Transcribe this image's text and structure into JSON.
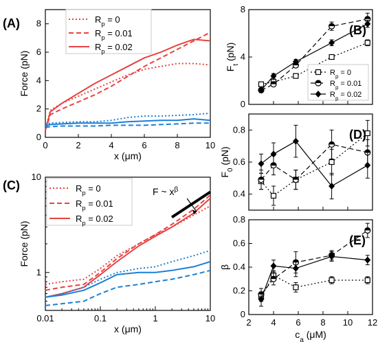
{
  "chart_data": [
    {
      "panel": "(A)",
      "type": "line",
      "xlabel": "x (μm)",
      "ylabel": "Force (pN)",
      "xlim": [
        0,
        10
      ],
      "ylim": [
        0,
        9
      ],
      "xticks": [
        0,
        2,
        4,
        6,
        8,
        10
      ],
      "yticks": [
        0,
        2,
        4,
        6,
        8
      ],
      "legend_position": "top-right",
      "series": [
        {
          "name": "Rp = 0",
          "sub": "p",
          "label_main": "R",
          "label_tail": " = 0",
          "color": "#e8413f",
          "dash": "2,3",
          "x": [
            0,
            0.3,
            1,
            2,
            3,
            4,
            5,
            6,
            7,
            8,
            9,
            10
          ],
          "y": [
            0.5,
            1.9,
            2.4,
            2.9,
            3.4,
            3.9,
            4.4,
            4.8,
            5.0,
            5.2,
            5.2,
            5.1
          ]
        },
        {
          "name": "Rp = 0.01",
          "sub": "p",
          "label_main": "R",
          "label_tail": " = 0.01",
          "color": "#e8413f",
          "dash": "7,4",
          "x": [
            0,
            0.3,
            1,
            2,
            3,
            4,
            5,
            6,
            7,
            8,
            9,
            10
          ],
          "y": [
            0.5,
            1.6,
            2.0,
            2.5,
            3.0,
            3.6,
            4.3,
            5.0,
            5.6,
            6.2,
            6.8,
            7.4
          ]
        },
        {
          "name": "Rp = 0.02",
          "sub": "p",
          "label_main": "R",
          "label_tail": " = 0.02",
          "color": "#e8413f",
          "dash": "",
          "x": [
            0,
            0.3,
            1,
            2,
            3,
            4,
            5,
            6,
            7,
            8,
            9,
            10
          ],
          "y": [
            0.5,
            1.8,
            2.4,
            3.1,
            3.8,
            4.4,
            5.0,
            5.6,
            6.0,
            6.5,
            6.9,
            6.8
          ]
        },
        {
          "name": "blue Rp = 0",
          "color": "#1b7fd6",
          "dash": "2,3",
          "x": [
            0,
            0.3,
            1,
            2,
            3,
            4,
            5,
            6,
            7,
            8,
            9,
            10
          ],
          "y": [
            0.9,
            1.0,
            1.05,
            1.1,
            1.1,
            1.2,
            1.4,
            1.5,
            1.5,
            1.55,
            1.6,
            1.7
          ]
        },
        {
          "name": "blue Rp = 0.01",
          "color": "#1b7fd6",
          "dash": "7,4",
          "x": [
            0,
            0.3,
            1,
            2,
            3,
            4,
            5,
            6,
            7,
            8,
            9,
            10
          ],
          "y": [
            0.7,
            0.75,
            0.8,
            0.8,
            0.8,
            0.85,
            0.85,
            0.85,
            0.9,
            0.95,
            1.0,
            1.0
          ]
        },
        {
          "name": "blue Rp = 0.02",
          "color": "#1b7fd6",
          "dash": "",
          "x": [
            0,
            0.3,
            1,
            2,
            3,
            4,
            5,
            6,
            7,
            8,
            9,
            10
          ],
          "y": [
            0.8,
            0.9,
            0.95,
            1.0,
            1.0,
            1.0,
            1.1,
            1.15,
            1.2,
            1.2,
            1.3,
            1.2
          ]
        }
      ]
    },
    {
      "panel": "(C)",
      "type": "line",
      "xlabel": "x (μm)",
      "ylabel": "Force (pN)",
      "xscale": "log",
      "yscale": "log",
      "xlim": [
        0.01,
        10
      ],
      "ylim": [
        0.4,
        10
      ],
      "xticks": [
        0.01,
        0.1,
        1,
        10
      ],
      "yticks": [
        1,
        10
      ],
      "legend_position": "top-left",
      "annotation": "F ~ x",
      "annotation_exp": "β",
      "series": [
        {
          "name": "Rp = 0",
          "sub": "p",
          "label_main": "R",
          "label_tail": " = 0",
          "color": "#e8413f",
          "dash": "2,3",
          "x": [
            0.01,
            0.02,
            0.05,
            0.1,
            0.2,
            0.5,
            1,
            2,
            5,
            10
          ],
          "y": [
            0.75,
            0.8,
            0.85,
            1.1,
            1.5,
            2.0,
            2.5,
            3.0,
            4.0,
            5.0
          ]
        },
        {
          "name": "Rp = 0.01",
          "sub": "p",
          "label_main": "R",
          "label_tail": " = 0.01",
          "color": "#e8413f",
          "dash": "7,4",
          "x": [
            0.01,
            0.02,
            0.05,
            0.1,
            0.2,
            0.5,
            1,
            2,
            5,
            10
          ],
          "y": [
            0.65,
            0.7,
            0.75,
            1.0,
            1.4,
            2.0,
            2.5,
            3.2,
            4.6,
            6.5
          ]
        },
        {
          "name": "Rp = 0.02",
          "sub": "p",
          "label_main": "R",
          "label_tail": " = 0.02",
          "color": "#e8413f",
          "dash": "",
          "x": [
            0.01,
            0.02,
            0.05,
            0.1,
            0.2,
            0.5,
            1,
            2,
            5,
            10
          ],
          "y": [
            0.55,
            0.6,
            0.7,
            0.95,
            1.3,
            1.9,
            2.4,
            3.0,
            4.2,
            6.0
          ]
        },
        {
          "name": "blue Rp = 0",
          "color": "#1b7fd6",
          "dash": "2,3",
          "x": [
            0.01,
            0.02,
            0.05,
            0.1,
            0.2,
            0.5,
            1,
            2,
            5,
            10
          ],
          "y": [
            0.55,
            0.6,
            0.7,
            0.85,
            1.0,
            1.1,
            1.15,
            1.3,
            1.5,
            1.7
          ]
        },
        {
          "name": "blue Rp = 0.01",
          "color": "#1b7fd6",
          "dash": "7,4",
          "x": [
            0.01,
            0.02,
            0.05,
            0.1,
            0.2,
            0.5,
            1,
            2,
            5,
            10
          ],
          "y": [
            0.45,
            0.47,
            0.5,
            0.6,
            0.7,
            0.75,
            0.8,
            0.85,
            0.95,
            1.05
          ]
        },
        {
          "name": "blue Rp = 0.02",
          "color": "#1b7fd6",
          "dash": "",
          "x": [
            0.01,
            0.02,
            0.05,
            0.1,
            0.2,
            0.5,
            1,
            2,
            5,
            10
          ],
          "y": [
            0.55,
            0.58,
            0.65,
            0.78,
            0.95,
            1.0,
            1.0,
            1.05,
            1.15,
            1.3
          ]
        }
      ],
      "fit_line": {
        "x": [
          2,
          10
        ],
        "y": [
          3.8,
          7.0
        ]
      }
    },
    {
      "panel": "(B)",
      "type": "scatter",
      "ylabel_main": "F",
      "ylabel_sub": "t",
      "ylabel_tail": " (pN)",
      "ylim": [
        0,
        8
      ],
      "yticks": [
        0,
        4,
        8
      ],
      "xlim": [
        2,
        12
      ],
      "legend_position": "bottom-right",
      "x": [
        3,
        4,
        5.8,
        8.7,
        11.6
      ],
      "series": [
        {
          "name": "Rp = 0",
          "marker": "square",
          "dash": "2,3",
          "label_main": "R",
          "sub": "p",
          "label_tail": " = 0",
          "y": [
            1.7,
            1.9,
            2.4,
            4.0,
            5.2
          ],
          "err": [
            0.15,
            0.15,
            0.15,
            0.2,
            0.25
          ]
        },
        {
          "name": "Rp = 0.01",
          "marker": "halfcircle",
          "dash": "7,4",
          "label_main": "R",
          "sub": "p",
          "label_tail": " = 0.01",
          "y": [
            1.2,
            1.7,
            3.3,
            6.6,
            7.2
          ],
          "err": [
            0.15,
            0.2,
            0.2,
            0.35,
            0.5
          ]
        },
        {
          "name": "Rp = 0.02",
          "marker": "diamond",
          "dash": "",
          "label_main": "R",
          "sub": "p",
          "label_tail": " = 0.02",
          "y": [
            1.2,
            2.4,
            3.6,
            5.2,
            6.8
          ],
          "err": [
            0.2,
            0.2,
            0.2,
            0.25,
            0.3
          ]
        }
      ]
    },
    {
      "panel": "(D)",
      "type": "scatter",
      "ylabel_main": "F",
      "ylabel_sub": "0",
      "ylabel_tail": " (pN)",
      "ylim": [
        0.3,
        0.9
      ],
      "yticks": [
        0.4,
        0.6,
        0.8
      ],
      "xlim": [
        2,
        12
      ],
      "x": [
        3,
        4,
        5.8,
        8.7,
        11.6
      ],
      "series": [
        {
          "name": "Rp = 0",
          "marker": "square",
          "dash": "2,3",
          "y": [
            0.48,
            0.39,
            0.49,
            0.6,
            0.78
          ],
          "err": [
            0.05,
            0.06,
            0.06,
            0.08,
            0.08
          ]
        },
        {
          "name": "Rp = 0.01",
          "marker": "halfcircle",
          "dash": "7,4",
          "y": [
            0.49,
            0.58,
            0.49,
            0.71,
            0.66
          ],
          "err": [
            0.06,
            0.06,
            0.06,
            0.09,
            0.08
          ]
        },
        {
          "name": "Rp = 0.02",
          "marker": "diamond",
          "dash": "",
          "y": [
            0.59,
            0.65,
            0.73,
            0.45,
            0.58
          ],
          "err": [
            0.06,
            0.07,
            0.1,
            0.08,
            0.08
          ]
        }
      ]
    },
    {
      "panel": "(E)",
      "type": "scatter",
      "xlabel_main": "c",
      "xlabel_sub": "a",
      "xlabel_tail": " (μM)",
      "ylabel": "β",
      "ylim": [
        0,
        0.8
      ],
      "yticks": [
        0.0,
        0.2,
        0.4,
        0.6,
        0.8
      ],
      "xlim": [
        2,
        12
      ],
      "xticks": [
        2,
        4,
        6,
        8,
        10,
        12
      ],
      "x": [
        3,
        4,
        5.8,
        8.7,
        11.6
      ],
      "series": [
        {
          "name": "Rp = 0",
          "marker": "square",
          "dash": "2,3",
          "y": [
            0.15,
            0.33,
            0.23,
            0.29,
            0.29
          ],
          "err": [
            0.04,
            0.04,
            0.04,
            0.03,
            0.03
          ]
        },
        {
          "name": "Rp = 0.01",
          "marker": "halfcircle",
          "dash": "7,4",
          "y": [
            0.17,
            0.3,
            0.44,
            0.5,
            0.71
          ],
          "err": [
            0.05,
            0.05,
            0.09,
            0.04,
            0.06
          ]
        },
        {
          "name": "Rp = 0.02",
          "marker": "diamond",
          "dash": "",
          "y": [
            0.13,
            0.41,
            0.39,
            0.49,
            0.46
          ],
          "err": [
            0.06,
            0.05,
            0.07,
            0.04,
            0.04
          ]
        }
      ]
    }
  ]
}
